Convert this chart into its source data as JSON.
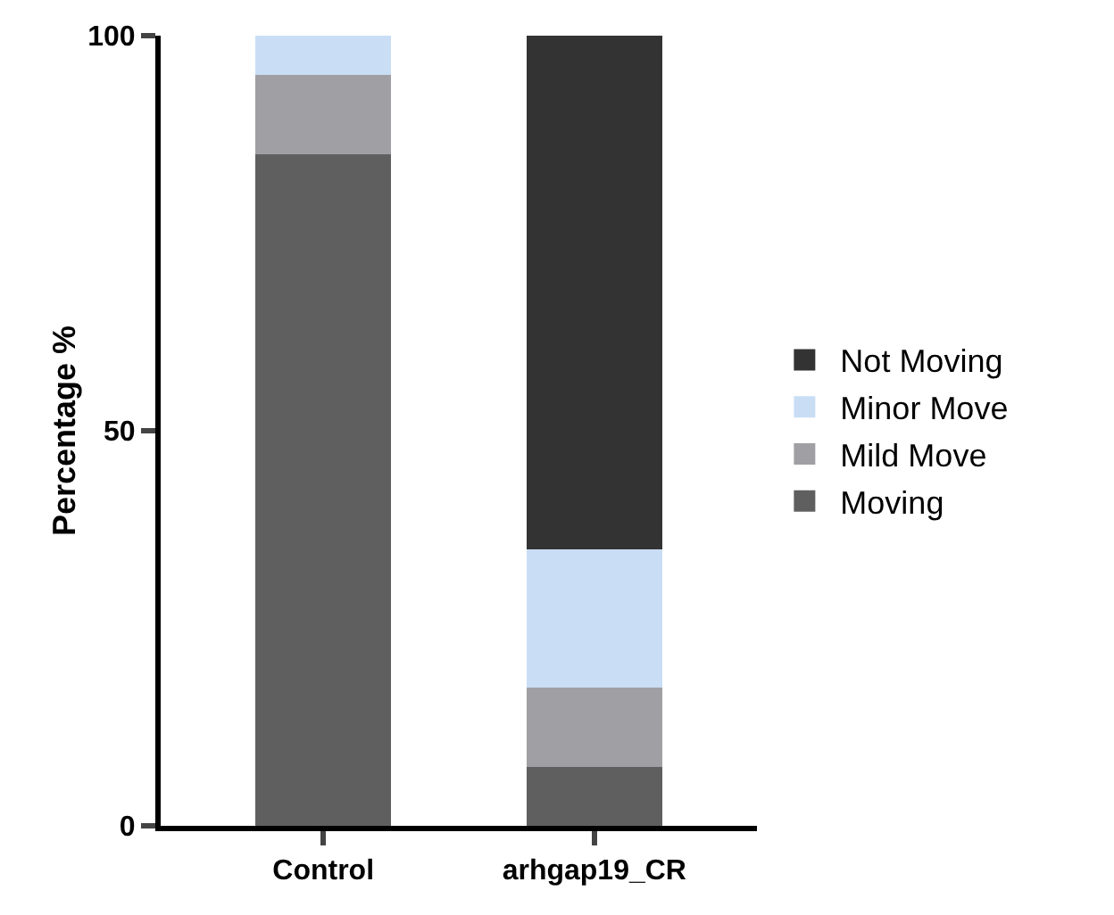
{
  "chart_data": {
    "type": "bar",
    "stacked": true,
    "ylabel": "Percentage %",
    "categories": [
      "Control",
      "arhgap19_CR"
    ],
    "series": [
      {
        "name": "Moving",
        "color": "#5f5f5f",
        "values": [
          85,
          7.5
        ]
      },
      {
        "name": "Mild Move",
        "color": "#a0a0a4",
        "values": [
          10,
          10
        ]
      },
      {
        "name": "Minor Move",
        "color": "#c9def5",
        "values": [
          5,
          17.5
        ]
      },
      {
        "name": "Not Moving",
        "color": "#333333",
        "values": [
          0,
          65
        ]
      }
    ],
    "ylim": [
      0,
      100
    ],
    "yticks": [
      0,
      50,
      100
    ],
    "grid": false,
    "legend": "right"
  }
}
